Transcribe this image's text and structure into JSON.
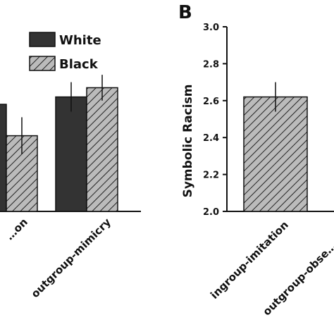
{
  "chart_data": [
    {
      "panel": "A",
      "type": "bar",
      "panel_label": "",
      "categories": [
        "…on",
        "outgroup-mimicry"
      ],
      "series": [
        {
          "name": "White",
          "values": [
            2.58,
            2.62
          ],
          "errors": [
            null,
            0.08
          ],
          "color": "#333333",
          "pattern": "solid"
        },
        {
          "name": "Black",
          "values": [
            2.41,
            2.67
          ],
          "errors": [
            0.1,
            0.07
          ],
          "color": "#bbbbbb",
          "pattern": "hatch"
        }
      ],
      "legend_placement": "top-left",
      "ylim": [
        2.0,
        3.0
      ],
      "grid": false
    },
    {
      "panel": "B",
      "type": "bar",
      "panel_label": "B",
      "categories": [
        "ingroup-imitation",
        "outgroup-obse…"
      ],
      "values": [
        2.62,
        null
      ],
      "errors": [
        0.08,
        null
      ],
      "ylabel": "Symbolic Racism",
      "ylim": [
        2.0,
        3.0
      ],
      "yticks": [
        "2.0",
        "2.2",
        "2.4",
        "2.6",
        "2.8",
        "3.0"
      ],
      "grid": false,
      "color": "#bbbbbb",
      "pattern": "hatch"
    }
  ]
}
